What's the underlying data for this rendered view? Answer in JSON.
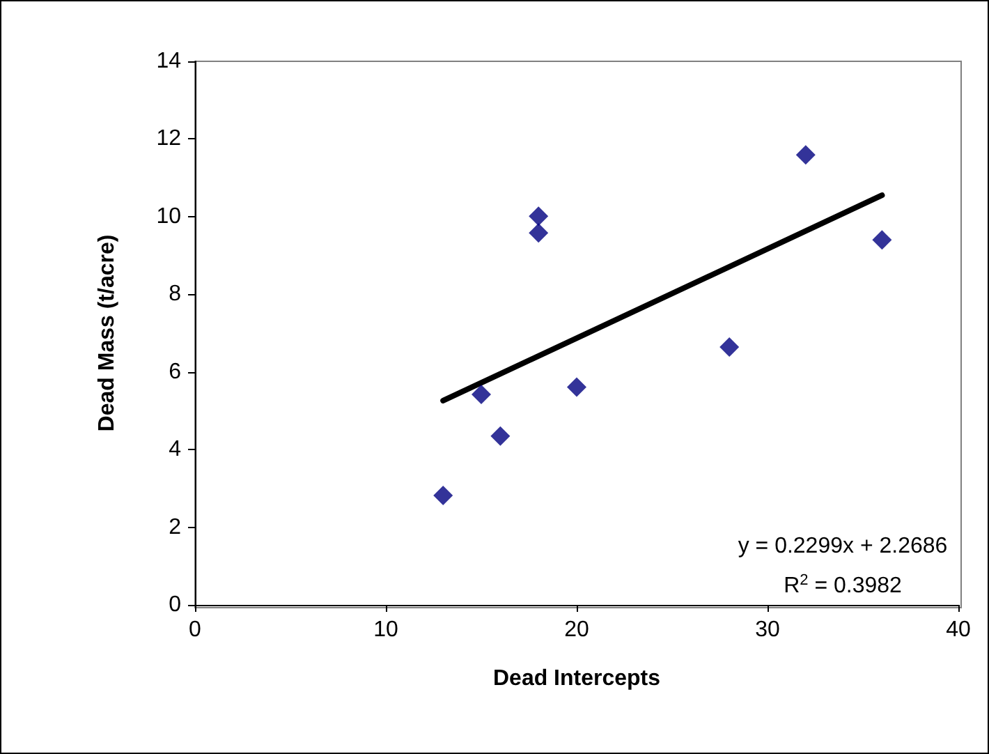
{
  "chart_data": {
    "type": "scatter",
    "xlabel": "Dead Intercepts",
    "ylabel": "Dead Mass (t/acre)",
    "xlim": [
      0,
      40
    ],
    "xticks": [
      0,
      10,
      20,
      30,
      40
    ],
    "ylim": [
      0,
      14
    ],
    "yticks": [
      0,
      2,
      4,
      6,
      8,
      10,
      12,
      14
    ],
    "grid": false,
    "marker": "diamond",
    "series": [
      {
        "color": "#000080",
        "x": [
          13,
          15,
          16,
          18,
          18,
          20,
          28,
          32,
          36
        ],
        "values": [
          2.82,
          5.42,
          4.35,
          10.01,
          9.58,
          5.61,
          6.64,
          11.59,
          9.4
        ]
      },
      {
        "type": "line",
        "color": "#000000",
        "line_style": "solid",
        "marker": "none",
        "x": [
          13,
          36
        ],
        "values": [
          5.26,
          10.55
        ]
      }
    ],
    "annotations": [
      "y = 0.2299x + 2.2686",
      "R$^{2}$ = 0.3982"
    ]
  }
}
